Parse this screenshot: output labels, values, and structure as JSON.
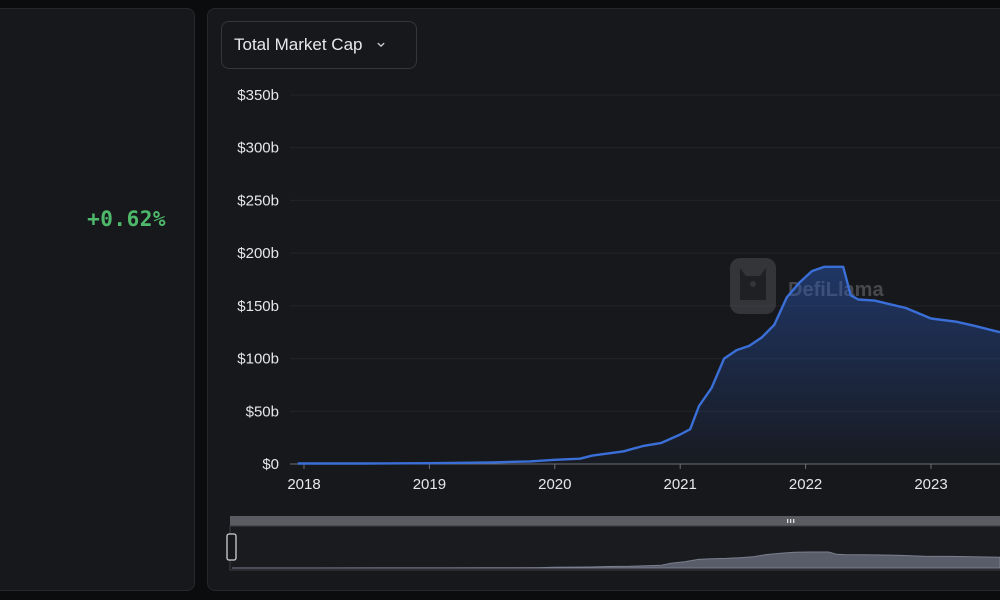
{
  "summary": {
    "change_24h": "+0.62%"
  },
  "controls": {
    "metric_label": "Total Market Cap",
    "chevron_icon": "chevron-down-icon"
  },
  "watermark": {
    "text": "DefiLlama",
    "icon": "llama-logo-icon"
  },
  "colors": {
    "line": "#3b6fd8",
    "positive": "#4eb96b",
    "panel": "#17181b"
  },
  "chart_data": {
    "type": "area",
    "title": "",
    "xlabel": "",
    "ylabel": "",
    "x_ticks": [
      "2018",
      "2019",
      "2020",
      "2021",
      "2022",
      "2023"
    ],
    "y_ticks": [
      "$0",
      "$50b",
      "$100b",
      "$150b",
      "$200b",
      "$250b",
      "$300b",
      "$350b"
    ],
    "ylim": [
      0,
      350
    ],
    "xlim": [
      2017.95,
      2023.55
    ],
    "grid": "horizontal",
    "series": [
      {
        "x": [
          2017.95,
          2018.5,
          2019.0,
          2019.5,
          2019.8,
          2020.0,
          2020.2,
          2020.3,
          2020.55,
          2020.7,
          2020.85,
          2021.0,
          2021.08,
          2021.15,
          2021.25,
          2021.35,
          2021.45,
          2021.55,
          2021.65,
          2021.75,
          2021.85,
          2021.95,
          2022.05,
          2022.15,
          2022.3,
          2022.36,
          2022.42,
          2022.55,
          2022.8,
          2023.0,
          2023.2,
          2023.35,
          2023.55
        ],
        "values": [
          0.5,
          0.5,
          0.8,
          1.5,
          2.5,
          4,
          5,
          8,
          12,
          17,
          20,
          28,
          33,
          55,
          72,
          100,
          108,
          112,
          120,
          132,
          158,
          172,
          183,
          187,
          187,
          160,
          156,
          155,
          148,
          138,
          135,
          131,
          125
        ]
      }
    ]
  },
  "brush": {
    "handle_icon": "grip-icon"
  }
}
